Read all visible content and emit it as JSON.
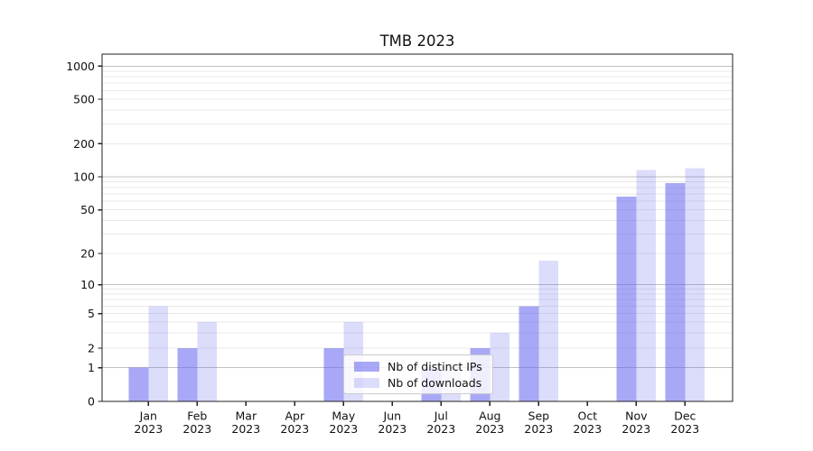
{
  "chart_data": {
    "type": "bar",
    "title": "TMB 2023",
    "categories": [
      "Jan",
      "Feb",
      "Mar",
      "Apr",
      "May",
      "Jun",
      "Jul",
      "Aug",
      "Sep",
      "Oct",
      "Nov",
      "Dec"
    ],
    "category_year": "2023",
    "series": [
      {
        "name": "Nb of distinct IPs",
        "color": "#6060ee",
        "alpha": 0.55,
        "values": [
          1,
          2,
          0,
          0,
          2,
          0,
          1,
          2,
          6,
          0,
          66,
          88
        ]
      },
      {
        "name": "Nb of downloads",
        "color": "#6060ee",
        "alpha": 0.22,
        "values": [
          6,
          4,
          0,
          0,
          4,
          0,
          1,
          3,
          17,
          0,
          115,
          120
        ]
      }
    ],
    "y_ticks": [
      0,
      1,
      2,
      5,
      10,
      20,
      50,
      100,
      200,
      500,
      1000
    ],
    "yscale": "symlog",
    "ylim": [
      0,
      1400
    ],
    "xlabel": "",
    "ylabel": "",
    "grid": true,
    "legend_position": "lower center"
  },
  "colors": {
    "background": "#ffffff",
    "axis": "#222222",
    "tick_label": "#111111",
    "major_grid": "#c0c0c0",
    "minor_grid": "#e9e9e9",
    "legend_border": "#cccccc"
  }
}
